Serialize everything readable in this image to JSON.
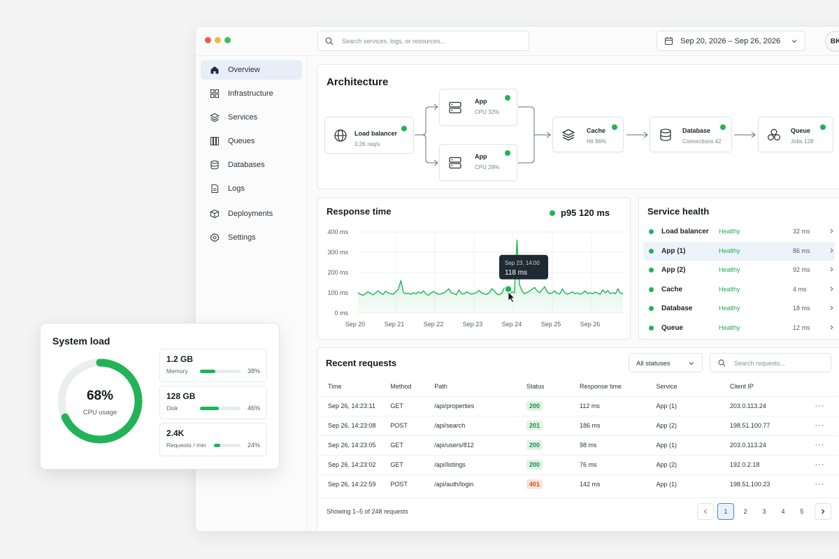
{
  "topbar": {
    "search_placeholder": "Search services, logs, or resources...",
    "date_range": "Sep 20, 2026 – Sep 26, 2026",
    "avatar_initials": "BK"
  },
  "sidebar": {
    "items": [
      {
        "label": "Overview",
        "icon": "home-icon",
        "active": true
      },
      {
        "label": "Infrastructure",
        "icon": "grid-icon"
      },
      {
        "label": "Services",
        "icon": "layers-icon"
      },
      {
        "label": "Queues",
        "icon": "columns-icon"
      },
      {
        "label": "Databases",
        "icon": "database-icon"
      },
      {
        "label": "Logs",
        "icon": "file-icon"
      },
      {
        "label": "Deployments",
        "icon": "cube-icon"
      },
      {
        "label": "Settings",
        "icon": "gear-icon"
      }
    ]
  },
  "architecture": {
    "title": "Architecture",
    "nodes": [
      {
        "name": "Load balancer",
        "sub": "3.2K req/s",
        "icon": "globe-icon"
      },
      {
        "name": "App",
        "sub": "CPU 32%",
        "icon": "server-icon"
      },
      {
        "name": "App",
        "sub": "CPU 28%",
        "icon": "server-icon"
      },
      {
        "name": "Cache",
        "sub": "Hit 96%",
        "icon": "layers-icon"
      },
      {
        "name": "Database",
        "sub": "Connections 42",
        "icon": "database-icon"
      },
      {
        "name": "Queue",
        "sub": "Jobs 128",
        "icon": "queue-icon"
      }
    ]
  },
  "response_time": {
    "title": "Response time",
    "p95_label": "p95 120 ms",
    "tooltip_time": "Sep 23, 14:00",
    "tooltip_value": "118 ms"
  },
  "chart_data": {
    "type": "area",
    "title": "Response time",
    "x_tick_labels": [
      "Sep 20",
      "Sep 21",
      "Sep 22",
      "Sep 23",
      "Sep 24",
      "Sep 25",
      "Sep 26"
    ],
    "y_tick_labels": [
      "400 ms",
      "300 ms",
      "200 ms",
      "100 ms",
      "0 ms"
    ],
    "ylim": [
      0,
      400
    ],
    "grid": true,
    "color": "#22b358",
    "series": [
      {
        "values": [
          100,
          92,
          88,
          95,
          105,
          96,
          90,
          100,
          110,
          98,
          92,
          108,
          100,
          95,
          93,
          105,
          118,
          160,
          102,
          95,
          98,
          92,
          100,
          95,
          104,
          98,
          110,
          93,
          88,
          100,
          106,
          98,
          92,
          95,
          99,
          108,
          120,
          100,
          95,
          90,
          115,
          96,
          94,
          104,
          99,
          93,
          97,
          102,
          112,
          98,
          95,
          92,
          100,
          120,
          110,
          94,
          90,
          98,
          125,
          100,
          95,
          105,
          100,
          360,
          140,
          110,
          95,
          102,
          108,
          118,
          126,
          110,
          100,
          115,
          130,
          105,
          95,
          100,
          110,
          96,
          95,
          120,
          100,
          93,
          98,
          105,
          95,
          100,
          92,
          98,
          110,
          96,
          100,
          95,
          104,
          98,
          92,
          115,
          100,
          110,
          96,
          100,
          95,
          120,
          98,
          96
        ]
      }
    ],
    "highlight": {
      "label": "Sep 23, 14:00",
      "value": 118
    }
  },
  "service_health": {
    "title": "Service health",
    "rows": [
      {
        "name": "Load balancer",
        "status": "Healthy",
        "latency": "32 ms"
      },
      {
        "name": "App (1)",
        "status": "Healthy",
        "latency": "86 ms",
        "selected": true
      },
      {
        "name": "App (2)",
        "status": "Healthy",
        "latency": "92 ms"
      },
      {
        "name": "Cache",
        "status": "Healthy",
        "latency": "4 ms"
      },
      {
        "name": "Database",
        "status": "Healthy",
        "latency": "18 ms"
      },
      {
        "name": "Queue",
        "status": "Healthy",
        "latency": "12 ms"
      }
    ]
  },
  "requests": {
    "title": "Recent requests",
    "filter_value": "All statuses",
    "search_placeholder": "Search requests...",
    "columns": [
      "Time",
      "Method",
      "Path",
      "Status",
      "Response time",
      "Service",
      "Client IP"
    ],
    "rows": [
      {
        "time": "Sep 26, 14:23:11",
        "method": "GET",
        "path": "/api/properties",
        "status": "200",
        "response": "112 ms",
        "service": "App (1)",
        "ip": "203.0.113.24"
      },
      {
        "time": "Sep 26, 14:23:08",
        "method": "POST",
        "path": "/api/search",
        "status": "201",
        "response": "186 ms",
        "service": "App (2)",
        "ip": "198.51.100.77"
      },
      {
        "time": "Sep 26, 14:23:05",
        "method": "GET",
        "path": "/api/users/812",
        "status": "200",
        "response": "98 ms",
        "service": "App (1)",
        "ip": "203.0.113.24"
      },
      {
        "time": "Sep 26, 14:23:02",
        "method": "GET",
        "path": "/api/listings",
        "status": "200",
        "response": "76 ms",
        "service": "App (2)",
        "ip": "192.0.2.18"
      },
      {
        "time": "Sep 26, 14:22:59",
        "method": "POST",
        "path": "/api/auth/login",
        "status": "401",
        "response": "142 ms",
        "service": "App (1)",
        "ip": "198.51.100.23"
      }
    ],
    "footer": "Showing 1–5 of 248 requests",
    "pages": [
      "1",
      "2",
      "3",
      "4",
      "5"
    ],
    "current_page": "1"
  },
  "system_load": {
    "title": "System load",
    "cpu_value": "68%",
    "cpu_fraction": 0.68,
    "cpu_label": "CPU usage",
    "metrics": [
      {
        "value": "1.2 GB",
        "label": "Memory",
        "percent": "38%",
        "fraction": 0.38
      },
      {
        "value": "128 GB",
        "label": "Disk",
        "percent": "46%",
        "fraction": 0.46
      },
      {
        "value": "2.4K",
        "label": "Requests / min",
        "percent": "24%",
        "fraction": 0.24
      }
    ]
  },
  "colors": {
    "accent": "#22b358",
    "active_nav": "#e8eef8",
    "error_badge": "#fce3d7"
  }
}
